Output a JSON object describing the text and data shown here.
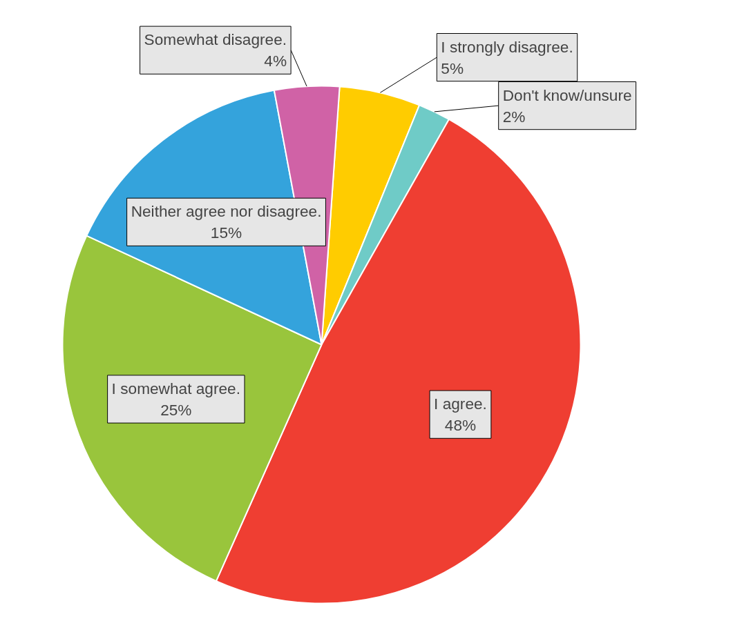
{
  "chart_data": {
    "type": "pie",
    "categories": [
      "I strongly disagree.",
      "Don't know/unsure",
      "I agree.",
      "I somewhat agree.",
      "Neither agree nor disagree.",
      "Somewhat disagree."
    ],
    "values": [
      5,
      2,
      48,
      25,
      15,
      4
    ],
    "colors": [
      "#ffcc00",
      "#6fcbc7",
      "#ef3e32",
      "#99c53c",
      "#34a3dc",
      "#d062a6"
    ],
    "value_labels": [
      "5%",
      "2%",
      "48%",
      "25%",
      "15%",
      "4%"
    ],
    "legend": false
  }
}
